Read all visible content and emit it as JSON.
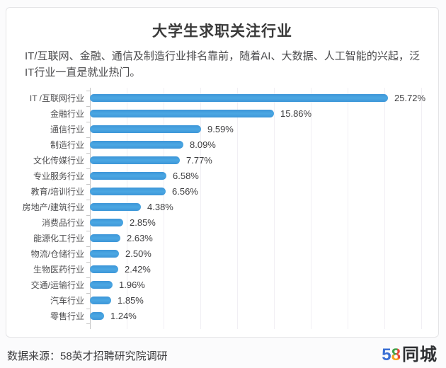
{
  "page": {
    "title": "大学生求职关注行业",
    "subtitle": "IT/互联网、金融、通信及制造行业排名靠前，随着AI、大数据、人工智能的兴起，泛IT行业一直是就业热门。",
    "source": "数据来源：58英才招聘研究院调研",
    "logo": {
      "five": "5",
      "eight": "8",
      "suffix": "同城"
    }
  },
  "colors": {
    "bar": "#409fdd",
    "axis": "#c6c6c6",
    "gridline": "#f1eff4",
    "title_text": "#3a3a3a",
    "logo_blue": "#3a6fd4",
    "logo_red": "#e8483a",
    "logo_orange": "#f6a21c",
    "logo_green": "#3fa047"
  },
  "chart_data": {
    "type": "bar",
    "orientation": "horizontal",
    "title": "大学生求职关注行业",
    "categories": [
      "IT /互联网行业",
      "金融行业",
      "通信行业",
      "制造行业",
      "文化传媒行业",
      "专业服务行业",
      "教育/培训行业",
      "房地产/建筑行业",
      "消费品行业",
      "能源化工行业",
      "物流/仓储行业",
      "生物医药行业",
      "交通/运输行业",
      "汽车行业",
      "零售行业"
    ],
    "values": [
      25.72,
      15.86,
      9.59,
      8.09,
      7.77,
      6.58,
      6.56,
      4.38,
      2.85,
      2.63,
      2.5,
      2.42,
      1.96,
      1.85,
      1.24
    ],
    "value_labels": [
      "25.72%",
      "15.86%",
      "9.59%",
      "8.09%",
      "7.77%",
      "6.58%",
      "6.56%",
      "4.38%",
      "2.85%",
      "2.63%",
      "2.50%",
      "2.42%",
      "1.96%",
      "1.85%",
      "1.24%"
    ],
    "xlim": [
      0,
      26
    ],
    "grid": true,
    "legend": "none",
    "bar_color": "#409fdd"
  }
}
